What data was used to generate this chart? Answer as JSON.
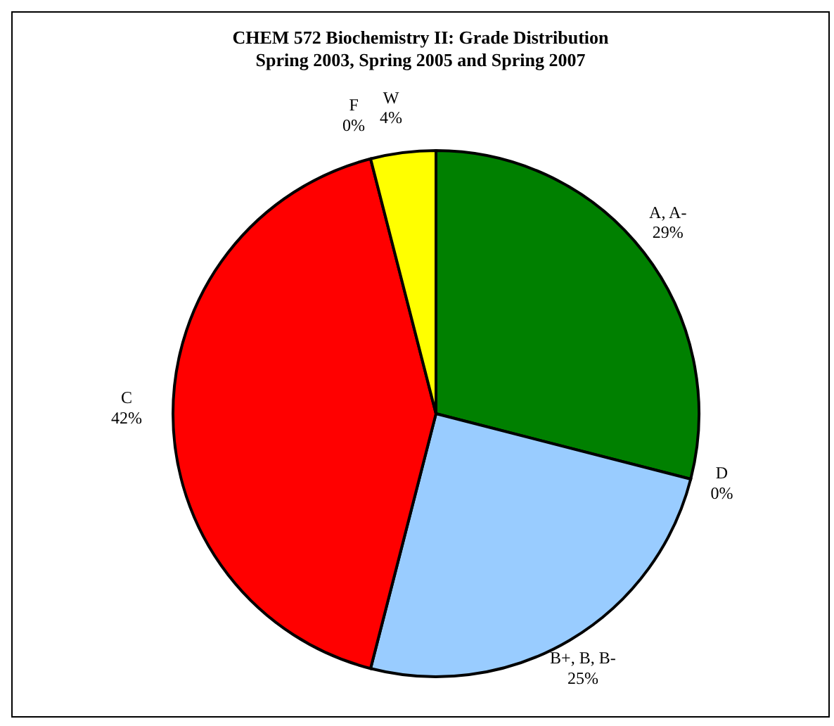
{
  "chart_data": {
    "type": "pie",
    "title": "CHEM 572 Biochemistry II: Grade Distribution",
    "subtitle": "Spring 2003, Spring 2005 and Spring 2007",
    "categories": [
      "A, A-",
      "D",
      "B+, B, B-",
      "C",
      "F",
      "W"
    ],
    "values": [
      29,
      0,
      25,
      42,
      0,
      4
    ],
    "colors": [
      "#008000",
      "#800080",
      "#99ccff",
      "#ff0000",
      "#000080",
      "#ffff00"
    ],
    "value_labels": [
      "29%",
      "0%",
      "25%",
      "42%",
      "0%",
      "4%"
    ]
  }
}
